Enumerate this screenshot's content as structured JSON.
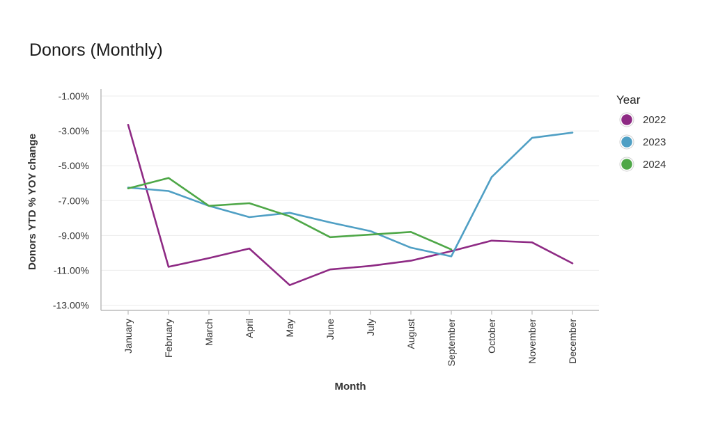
{
  "title": "Donors (Monthly)",
  "chart_data": {
    "type": "line",
    "title": "Donors (Monthly)",
    "xlabel": "Month",
    "ylabel": "Donors YTD % YOY change",
    "categories": [
      "January",
      "February",
      "March",
      "April",
      "May",
      "June",
      "July",
      "August",
      "September",
      "October",
      "November",
      "December"
    ],
    "yticks": [
      -1,
      -3,
      -5,
      -7,
      -9,
      -11,
      -13
    ],
    "ytick_labels": [
      "-1.00%",
      "-3.00%",
      "-5.00%",
      "-7.00%",
      "-9.00%",
      "-11.00%",
      "-13.00%"
    ],
    "ylim": [
      -13.3,
      -0.6
    ],
    "grid": "horizontal",
    "legend": {
      "title": "Year",
      "placement": "right"
    },
    "series": [
      {
        "name": "2022",
        "color": "#8e2a84",
        "values": [
          -2.65,
          -10.8,
          -10.3,
          -9.75,
          -11.85,
          -10.95,
          -10.75,
          -10.45,
          -9.9,
          -9.3,
          -9.4,
          -10.6
        ]
      },
      {
        "name": "2023",
        "color": "#4f9fc4",
        "values": [
          -6.25,
          -6.45,
          -7.3,
          -7.95,
          -7.7,
          -8.25,
          -8.75,
          -9.7,
          -10.2,
          -5.65,
          -3.4,
          -3.1
        ]
      },
      {
        "name": "2024",
        "color": "#4ea747",
        "values": [
          -6.3,
          -5.7,
          -7.3,
          -7.15,
          -7.9,
          -9.1,
          -8.95,
          -8.8,
          -9.8,
          null,
          null,
          null
        ]
      }
    ]
  }
}
